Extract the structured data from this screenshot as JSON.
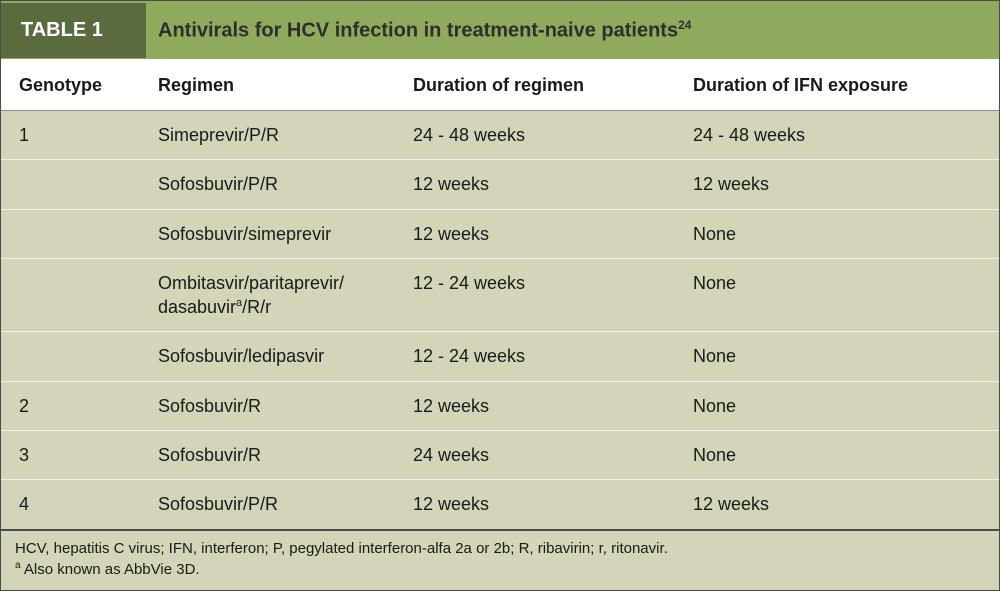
{
  "colors": {
    "header_bg": "#8faa5d",
    "label_bg": "#5a6b3e",
    "stripe_bg": "#d4d4b8",
    "border": "#4a4a4a"
  },
  "title": {
    "label": "TABLE 1",
    "text": "Antivirals for HCV infection in treatment-naive patients",
    "ref": "24"
  },
  "columns": {
    "genotype": "Genotype",
    "regimen": "Regimen",
    "duration": "Duration of regimen",
    "ifn": "Duration of IFN exposure"
  },
  "rows": [
    {
      "genotype": "1",
      "regimen": "Simeprevir/P/R",
      "regimen_sup": "",
      "duration": "24 - 48 weeks",
      "ifn": "24 - 48 weeks"
    },
    {
      "genotype": "",
      "regimen": "Sofosbuvir/P/R",
      "regimen_sup": "",
      "duration": "12 weeks",
      "ifn": "12 weeks"
    },
    {
      "genotype": "",
      "regimen": "Sofosbuvir/simeprevir",
      "regimen_sup": "",
      "duration": "12 weeks",
      "ifn": "None"
    },
    {
      "genotype": "",
      "regimen": "Ombitasvir/paritaprevir/\ndasabuvir",
      "regimen_sup": "a",
      "regimen_tail": "/R/r",
      "duration": "12 - 24 weeks",
      "ifn": "None"
    },
    {
      "genotype": "",
      "regimen": "Sofosbuvir/ledipasvir",
      "regimen_sup": "",
      "duration": "12 - 24 weeks",
      "ifn": "None"
    },
    {
      "genotype": "2",
      "regimen": "Sofosbuvir/R",
      "regimen_sup": "",
      "duration": "12 weeks",
      "ifn": "None"
    },
    {
      "genotype": "3",
      "regimen": "Sofosbuvir/R",
      "regimen_sup": "",
      "duration": "24 weeks",
      "ifn": "None"
    },
    {
      "genotype": "4",
      "regimen": "Sofosbuvir/P/R",
      "regimen_sup": "",
      "duration": "12 weeks",
      "ifn": "12 weeks"
    }
  ],
  "footnotes": {
    "line1": "HCV, hepatitis C virus; IFN, interferon; P, pegylated interferon-alfa 2a or 2b; R, ribavirin; r, ritonavir.",
    "line2_sup": "a",
    "line2": " Also known as AbbVie 3D."
  }
}
